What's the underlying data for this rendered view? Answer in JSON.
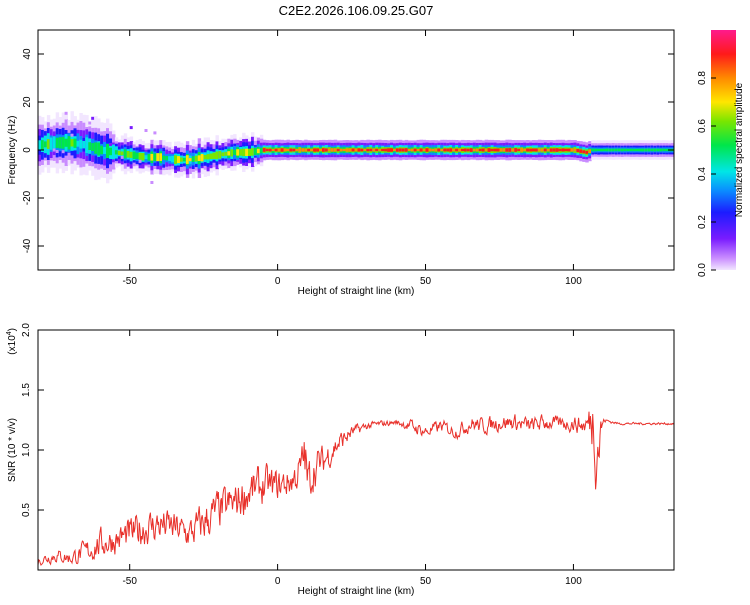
{
  "title": "C2E2.2026.106.09.25.G07",
  "colors": {
    "snr_line": "#e8302a",
    "axis": "#000000"
  },
  "chart_data": [
    {
      "type": "heatmap",
      "name": "spectrogram",
      "xlabel": "Height of straight line (km)",
      "ylabel": "Frequency (Hz)",
      "xlim": [
        -81,
        134
      ],
      "ylim": [
        -50,
        50
      ],
      "xticks": [
        "-50",
        "0",
        "50",
        "100"
      ],
      "xtick_values": [
        -50,
        0,
        50,
        100
      ],
      "yticks": [
        "40",
        "20",
        "0",
        "-20",
        "-40"
      ],
      "ytick_values": [
        40,
        20,
        0,
        -20,
        -40
      ],
      "colorbar": {
        "label": "Normalized spectral amplitude",
        "range": [
          0,
          1
        ],
        "ticks": [
          "0.0",
          "0.2",
          "0.4",
          "0.6",
          "0.8"
        ],
        "tick_values": [
          0,
          0.2,
          0.4,
          0.6,
          0.8
        ],
        "colormap": "rainbow (magenta-blue-cyan-green-yellow-red)"
      },
      "ridge_freq_hz": {
        "x_km": [
          -81,
          -75,
          -70,
          -65,
          -60,
          -55,
          -50,
          -45,
          -40,
          -35,
          -30,
          -25,
          -20,
          -15,
          -10,
          -5,
          0,
          5,
          10,
          30,
          50,
          70,
          90,
          100,
          104,
          106,
          110,
          134
        ],
        "freq": [
          2,
          3,
          3,
          2,
          0,
          -1,
          -2,
          -3,
          -3,
          -4,
          -4,
          -3,
          -2,
          -1,
          -1,
          0,
          0,
          0,
          0,
          0,
          0,
          0,
          0,
          0,
          -1,
          0,
          0,
          0
        ]
      }
    },
    {
      "type": "line",
      "name": "snr",
      "xlabel": "Height of straight line (km)",
      "ylabel": "SNR (10 * v/v)",
      "multiplier_label": "(x10",
      "multiplier_exp": "4",
      "xlim": [
        -81,
        134
      ],
      "ylim": [
        0,
        20000
      ],
      "xticks": [
        "-50",
        "0",
        "50",
        "100"
      ],
      "xtick_values": [
        -50,
        0,
        50,
        100
      ],
      "yticks": [
        "2.0",
        "1.5",
        "1.0",
        "0.5"
      ],
      "ytick_values": [
        20000,
        15000,
        10000,
        5000
      ],
      "series_envelope": {
        "x_km": [
          -81,
          -75,
          -70,
          -65,
          -60,
          -55,
          -50,
          -45,
          -40,
          -35,
          -30,
          -25,
          -20,
          -15,
          -10,
          -5,
          0,
          5,
          8,
          9,
          10,
          12,
          15,
          20,
          25,
          30,
          35,
          40,
          45,
          50,
          55,
          60,
          65,
          70,
          75,
          80,
          85,
          90,
          95,
          100,
          104,
          106,
          107,
          108,
          110,
          115,
          120,
          134
        ],
        "mean": [
          800,
          1200,
          1000,
          1500,
          2200,
          2500,
          3000,
          3500,
          3800,
          3500,
          3000,
          4000,
          5000,
          5500,
          6500,
          7000,
          7000,
          7500,
          8500,
          10000,
          7000,
          8500,
          9000,
          10500,
          11500,
          12000,
          12200,
          12300,
          12000,
          11500,
          12000,
          11500,
          12200,
          12000,
          12300,
          12300,
          12000,
          12300,
          12200,
          12200,
          12000,
          12500,
          13000,
          10500,
          12500,
          12200,
          12200,
          12200
        ],
        "spread": [
          600,
          800,
          900,
          1400,
          1800,
          1800,
          2000,
          2200,
          2200,
          2000,
          2000,
          2500,
          2500,
          2500,
          2500,
          2500,
          2000,
          2000,
          2500,
          3500,
          3000,
          2500,
          2000,
          1500,
          800,
          500,
          400,
          300,
          800,
          800,
          800,
          800,
          1000,
          1000,
          1000,
          1000,
          1000,
          1000,
          800,
          1000,
          1200,
          3000,
          6000,
          7000,
          300,
          150,
          150,
          150
        ]
      }
    }
  ]
}
